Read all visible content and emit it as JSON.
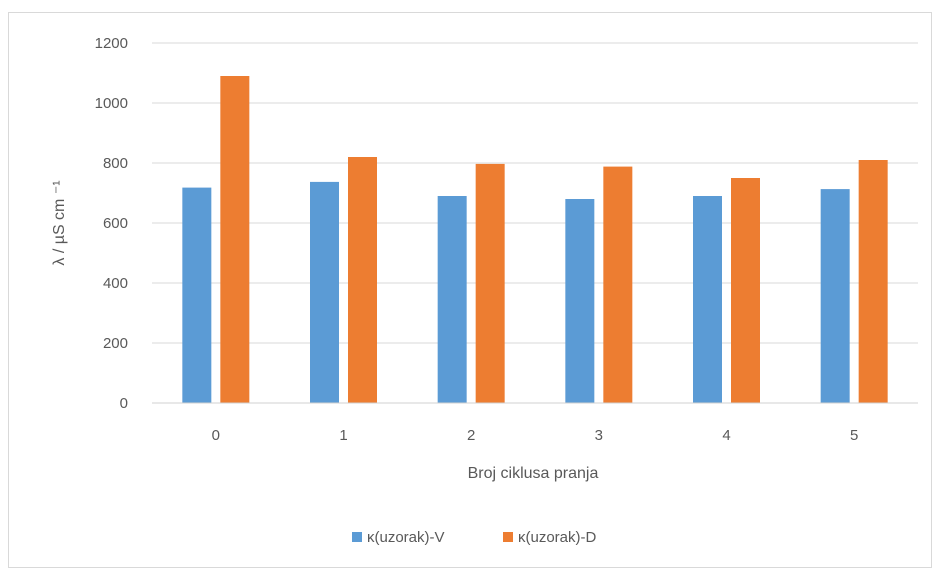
{
  "chart_data": {
    "type": "bar",
    "categories": [
      "0",
      "1",
      "2",
      "3",
      "4",
      "5"
    ],
    "series": [
      {
        "name": "κ(uzorak)-V",
        "values": [
          718,
          737,
          690,
          680,
          690,
          713
        ],
        "color": "#5B9BD5"
      },
      {
        "name": "κ(uzorak)-D",
        "values": [
          1090,
          820,
          797,
          788,
          750,
          810
        ],
        "color": "#ED7D31"
      }
    ],
    "title": "",
    "xlabel": "Broj ciklusa pranja",
    "ylabel": "λ / µS cm ⁻¹",
    "ylim": [
      0,
      1200
    ],
    "yticks": [
      0,
      200,
      400,
      600,
      800,
      1000,
      1200
    ],
    "grid": true,
    "legend_position": "bottom"
  }
}
